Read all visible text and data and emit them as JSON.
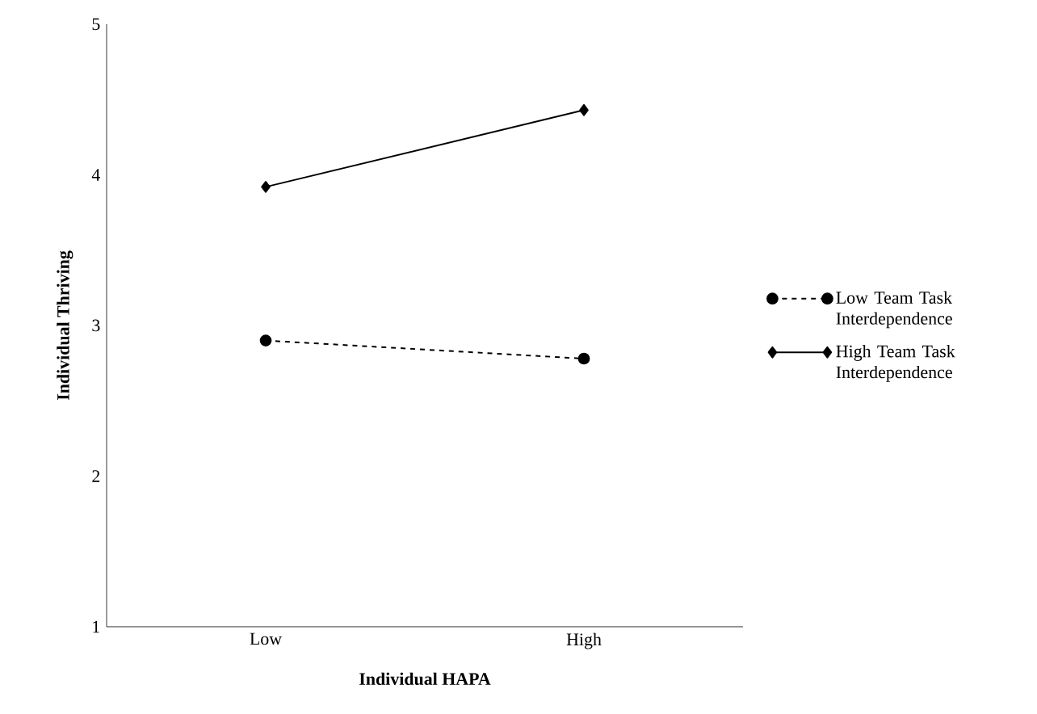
{
  "chart_data": {
    "type": "line",
    "xlabel": "Individual HAPA",
    "ylabel": "Individual Thriving",
    "categories": [
      "Low",
      "High"
    ],
    "series": [
      {
        "name": "Low Team Task Interdependence",
        "color": "#000000",
        "values": [
          2.9,
          2.78
        ],
        "marker": "circle",
        "line_style": "dashed"
      },
      {
        "name": "High Team Task Interdependence",
        "color": "#000000",
        "values": [
          3.92,
          4.43
        ],
        "marker": "diamond",
        "line_style": "solid"
      }
    ],
    "ylim": [
      1,
      5
    ],
    "yticks": [
      1,
      2,
      3,
      4,
      5
    ],
    "grid": false,
    "legend": "right"
  }
}
